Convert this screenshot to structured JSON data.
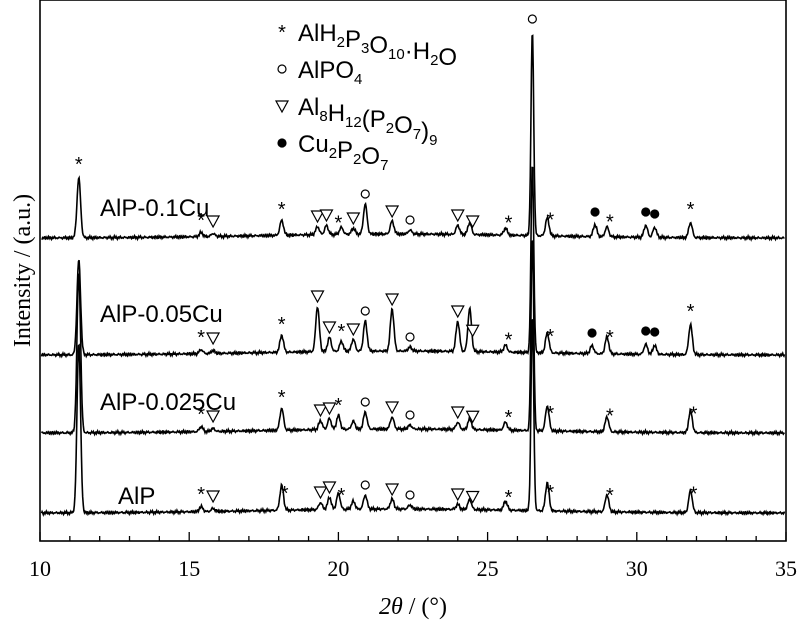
{
  "chart_data": {
    "type": "line",
    "xlabel": "2θ / (°)",
    "ylabel": "Intensity / (a.u.)",
    "xlim": [
      10,
      35
    ],
    "x_ticks": [
      10,
      15,
      20,
      25,
      30,
      35
    ],
    "y_ticks_shown": false,
    "grid": false,
    "legend": {
      "position": "top-center",
      "entries": [
        {
          "symbol": "asterisk",
          "label": "AlH2P3O10·H2O"
        },
        {
          "symbol": "open-circle",
          "label": "AlPO4"
        },
        {
          "symbol": "open-triangle-down",
          "label": "Al8H12(P2O7)9"
        },
        {
          "symbol": "filled-circle",
          "label": "Cu2P2O7"
        }
      ]
    },
    "series": [
      {
        "name": "AlP-0.1Cu",
        "baseline": 0,
        "peaks": [
          {
            "x": 11.3,
            "h": 60
          },
          {
            "x": 15.4,
            "h": 4
          },
          {
            "x": 15.8,
            "h": 3
          },
          {
            "x": 18.1,
            "h": 15
          },
          {
            "x": 19.3,
            "h": 8
          },
          {
            "x": 19.6,
            "h": 9
          },
          {
            "x": 20.1,
            "h": 7
          },
          {
            "x": 20.5,
            "h": 6
          },
          {
            "x": 20.9,
            "h": 30
          },
          {
            "x": 21.8,
            "h": 13
          },
          {
            "x": 22.4,
            "h": 4
          },
          {
            "x": 24.0,
            "h": 9
          },
          {
            "x": 24.4,
            "h": 12
          },
          {
            "x": 25.6,
            "h": 7
          },
          {
            "x": 26.5,
            "h": 205
          },
          {
            "x": 27.0,
            "h": 18
          },
          {
            "x": 28.6,
            "h": 12
          },
          {
            "x": 29.0,
            "h": 10
          },
          {
            "x": 30.3,
            "h": 12
          },
          {
            "x": 30.6,
            "h": 10
          },
          {
            "x": 31.8,
            "h": 15
          }
        ]
      },
      {
        "name": "AlP-0.05Cu",
        "baseline": 0,
        "peaks": [
          {
            "x": 11.3,
            "h": 95
          },
          {
            "x": 15.4,
            "h": 4
          },
          {
            "x": 15.8,
            "h": 3
          },
          {
            "x": 18.1,
            "h": 17
          },
          {
            "x": 19.3,
            "h": 45
          },
          {
            "x": 19.7,
            "h": 14
          },
          {
            "x": 20.1,
            "h": 10
          },
          {
            "x": 20.5,
            "h": 12
          },
          {
            "x": 20.9,
            "h": 30
          },
          {
            "x": 21.8,
            "h": 42
          },
          {
            "x": 22.4,
            "h": 4
          },
          {
            "x": 24.0,
            "h": 30
          },
          {
            "x": 24.4,
            "h": 43
          },
          {
            "x": 25.6,
            "h": 7
          },
          {
            "x": 26.5,
            "h": 190
          },
          {
            "x": 27.0,
            "h": 20
          },
          {
            "x": 28.5,
            "h": 8
          },
          {
            "x": 29.0,
            "h": 17
          },
          {
            "x": 30.3,
            "h": 10
          },
          {
            "x": 30.6,
            "h": 9
          },
          {
            "x": 31.8,
            "h": 30
          }
        ]
      },
      {
        "name": "AlP-0.025Cu",
        "baseline": 0,
        "peaks": [
          {
            "x": 11.3,
            "h": 160
          },
          {
            "x": 15.4,
            "h": 5
          },
          {
            "x": 15.8,
            "h": 3
          },
          {
            "x": 18.1,
            "h": 22
          },
          {
            "x": 19.4,
            "h": 9
          },
          {
            "x": 19.7,
            "h": 11
          },
          {
            "x": 20.0,
            "h": 14
          },
          {
            "x": 20.5,
            "h": 8
          },
          {
            "x": 20.9,
            "h": 17
          },
          {
            "x": 21.8,
            "h": 12
          },
          {
            "x": 22.4,
            "h": 4
          },
          {
            "x": 24.0,
            "h": 7
          },
          {
            "x": 24.4,
            "h": 11
          },
          {
            "x": 25.6,
            "h": 8
          },
          {
            "x": 26.5,
            "h": 195
          },
          {
            "x": 27.0,
            "h": 25
          },
          {
            "x": 29.0,
            "h": 15
          },
          {
            "x": 31.8,
            "h": 22
          }
        ]
      },
      {
        "name": "AlP",
        "baseline": 0,
        "peaks": [
          {
            "x": 11.3,
            "h": 170
          },
          {
            "x": 15.4,
            "h": 5
          },
          {
            "x": 15.8,
            "h": 3
          },
          {
            "x": 18.1,
            "h": 25
          },
          {
            "x": 19.4,
            "h": 7
          },
          {
            "x": 19.7,
            "h": 12
          },
          {
            "x": 20.0,
            "h": 16
          },
          {
            "x": 20.5,
            "h": 8
          },
          {
            "x": 20.9,
            "h": 14
          },
          {
            "x": 21.8,
            "h": 10
          },
          {
            "x": 22.4,
            "h": 4
          },
          {
            "x": 24.0,
            "h": 5
          },
          {
            "x": 24.4,
            "h": 10
          },
          {
            "x": 25.6,
            "h": 9
          },
          {
            "x": 26.5,
            "h": 195
          },
          {
            "x": 27.0,
            "h": 28
          },
          {
            "x": 29.0,
            "h": 17
          },
          {
            "x": 31.8,
            "h": 22
          }
        ]
      }
    ],
    "phase_markers": [
      {
        "series": "AlP-0.1Cu",
        "marks": [
          {
            "x": 11.3,
            "symbol": "asterisk"
          },
          {
            "x": 15.4,
            "symbol": "asterisk"
          },
          {
            "x": 15.8,
            "symbol": "open-triangle-down"
          },
          {
            "x": 18.1,
            "symbol": "asterisk"
          },
          {
            "x": 19.3,
            "symbol": "open-triangle-down"
          },
          {
            "x": 19.6,
            "symbol": "open-triangle-down"
          },
          {
            "x": 20.0,
            "symbol": "asterisk"
          },
          {
            "x": 20.5,
            "symbol": "open-triangle-down"
          },
          {
            "x": 20.9,
            "symbol": "open-circle"
          },
          {
            "x": 21.8,
            "symbol": "open-triangle-down"
          },
          {
            "x": 22.4,
            "symbol": "open-circle"
          },
          {
            "x": 24.0,
            "symbol": "open-triangle-down"
          },
          {
            "x": 24.5,
            "symbol": "open-triangle-down"
          },
          {
            "x": 25.7,
            "symbol": "asterisk"
          },
          {
            "x": 26.5,
            "symbol": "open-circle"
          },
          {
            "x": 27.1,
            "symbol": "asterisk"
          },
          {
            "x": 28.6,
            "symbol": "filled-circle"
          },
          {
            "x": 29.1,
            "symbol": "asterisk"
          },
          {
            "x": 30.3,
            "symbol": "filled-circle"
          },
          {
            "x": 30.6,
            "symbol": "filled-circle"
          },
          {
            "x": 31.8,
            "symbol": "asterisk"
          }
        ]
      },
      {
        "series": "AlP-0.05Cu",
        "marks": [
          {
            "x": 15.4,
            "symbol": "asterisk"
          },
          {
            "x": 15.8,
            "symbol": "open-triangle-down"
          },
          {
            "x": 18.1,
            "symbol": "asterisk"
          },
          {
            "x": 19.3,
            "symbol": "open-triangle-down"
          },
          {
            "x": 19.7,
            "symbol": "open-triangle-down"
          },
          {
            "x": 20.1,
            "symbol": "asterisk"
          },
          {
            "x": 20.5,
            "symbol": "open-triangle-down"
          },
          {
            "x": 20.9,
            "symbol": "open-circle"
          },
          {
            "x": 21.8,
            "symbol": "open-triangle-down"
          },
          {
            "x": 22.4,
            "symbol": "open-circle"
          },
          {
            "x": 24.0,
            "symbol": "open-triangle-down"
          },
          {
            "x": 24.5,
            "symbol": "open-triangle-down"
          },
          {
            "x": 25.7,
            "symbol": "asterisk"
          },
          {
            "x": 27.1,
            "symbol": "asterisk"
          },
          {
            "x": 28.5,
            "symbol": "filled-circle"
          },
          {
            "x": 29.1,
            "symbol": "asterisk"
          },
          {
            "x": 30.3,
            "symbol": "filled-circle"
          },
          {
            "x": 30.6,
            "symbol": "filled-circle"
          },
          {
            "x": 31.8,
            "symbol": "asterisk"
          }
        ]
      },
      {
        "series": "AlP-0.025Cu",
        "marks": [
          {
            "x": 15.4,
            "symbol": "asterisk"
          },
          {
            "x": 15.8,
            "symbol": "open-triangle-down"
          },
          {
            "x": 18.1,
            "symbol": "asterisk"
          },
          {
            "x": 19.4,
            "symbol": "open-triangle-down"
          },
          {
            "x": 19.7,
            "symbol": "open-triangle-down"
          },
          {
            "x": 20.0,
            "symbol": "asterisk"
          },
          {
            "x": 20.9,
            "symbol": "open-circle"
          },
          {
            "x": 21.8,
            "symbol": "open-triangle-down"
          },
          {
            "x": 22.4,
            "symbol": "open-circle"
          },
          {
            "x": 24.0,
            "symbol": "open-triangle-down"
          },
          {
            "x": 24.5,
            "symbol": "open-triangle-down"
          },
          {
            "x": 25.7,
            "symbol": "asterisk"
          },
          {
            "x": 27.1,
            "symbol": "asterisk"
          },
          {
            "x": 29.1,
            "symbol": "asterisk"
          },
          {
            "x": 31.9,
            "symbol": "asterisk"
          }
        ]
      },
      {
        "series": "AlP",
        "marks": [
          {
            "x": 15.4,
            "symbol": "asterisk"
          },
          {
            "x": 15.8,
            "symbol": "open-triangle-down"
          },
          {
            "x": 18.2,
            "symbol": "asterisk"
          },
          {
            "x": 19.4,
            "symbol": "open-triangle-down"
          },
          {
            "x": 19.7,
            "symbol": "open-triangle-down"
          },
          {
            "x": 20.1,
            "symbol": "asterisk"
          },
          {
            "x": 20.9,
            "symbol": "open-circle"
          },
          {
            "x": 21.8,
            "symbol": "open-triangle-down"
          },
          {
            "x": 22.4,
            "symbol": "open-circle"
          },
          {
            "x": 24.0,
            "symbol": "open-triangle-down"
          },
          {
            "x": 24.5,
            "symbol": "open-triangle-down"
          },
          {
            "x": 25.7,
            "symbol": "asterisk"
          },
          {
            "x": 27.1,
            "symbol": "asterisk"
          },
          {
            "x": 29.1,
            "symbol": "asterisk"
          },
          {
            "x": 31.9,
            "symbol": "asterisk"
          }
        ]
      }
    ]
  }
}
